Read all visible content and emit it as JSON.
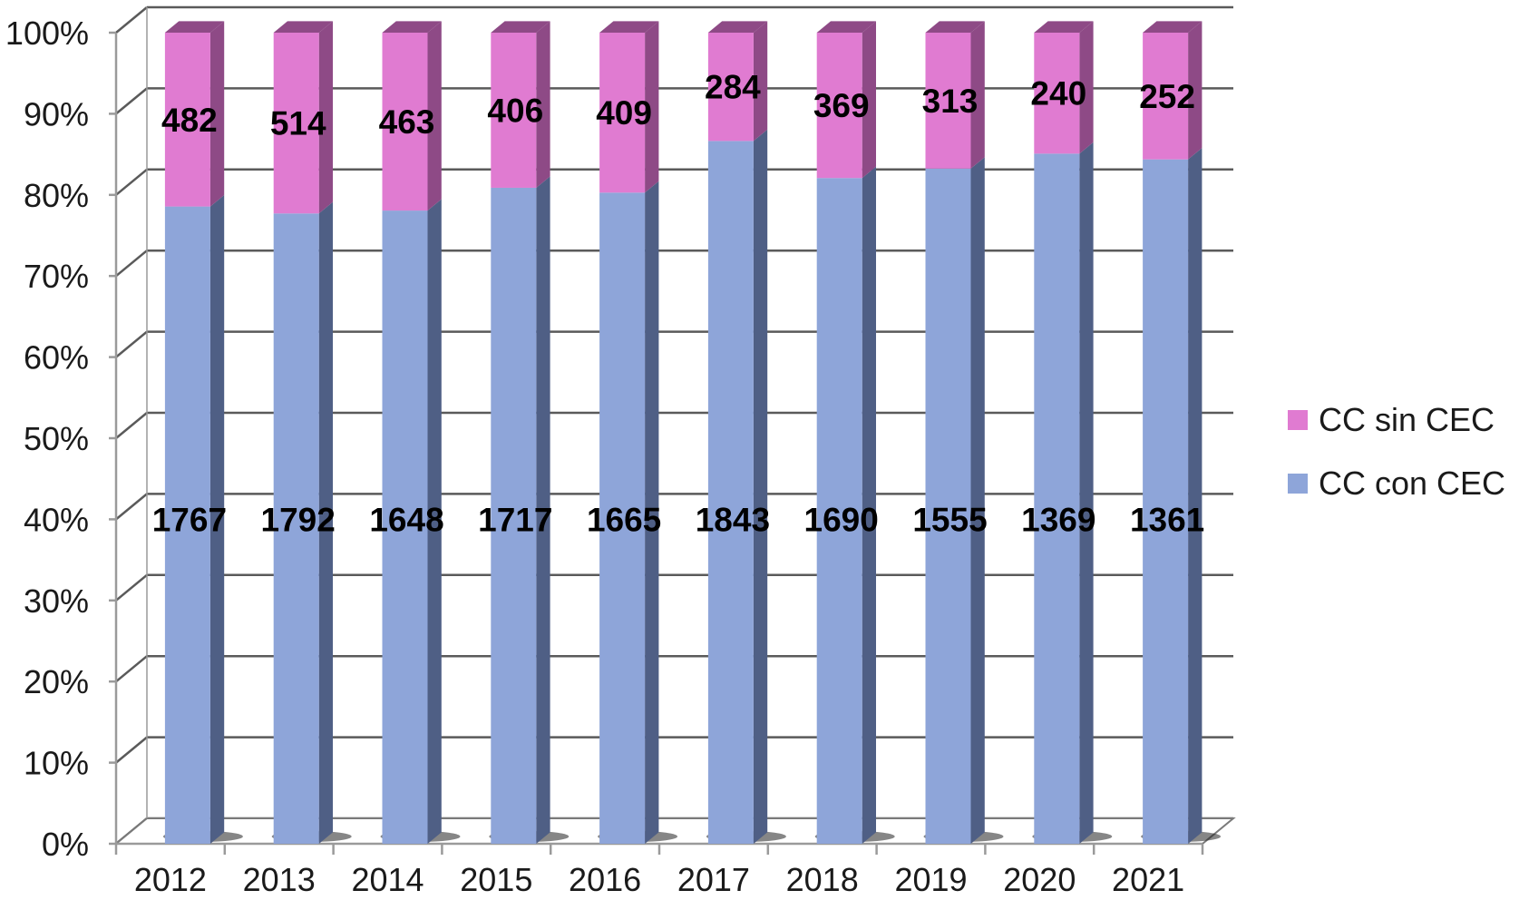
{
  "chart_data": {
    "type": "bar",
    "stacked": "percent",
    "categories": [
      "2012",
      "2013",
      "2014",
      "2015",
      "2016",
      "2017",
      "2018",
      "2019",
      "2020",
      "2021"
    ],
    "series": [
      {
        "name": "CC con CEC",
        "values": [
          1767,
          1792,
          1648,
          1717,
          1665,
          1843,
          1690,
          1555,
          1369,
          1361
        ],
        "color": "#8ea5d9",
        "side_color": "#4f5f85"
      },
      {
        "name": "CC sin CEC",
        "values": [
          482,
          514,
          463,
          406,
          409,
          284,
          369,
          313,
          240,
          252
        ],
        "color": "#e07bd1",
        "side_color": "#8e4a86"
      }
    ],
    "y_ticks": [
      "0%",
      "10%",
      "20%",
      "30%",
      "40%",
      "50%",
      "60%",
      "70%",
      "80%",
      "90%",
      "100%"
    ],
    "ylim": [
      0,
      100
    ],
    "grid": true,
    "legend_position": "right"
  }
}
